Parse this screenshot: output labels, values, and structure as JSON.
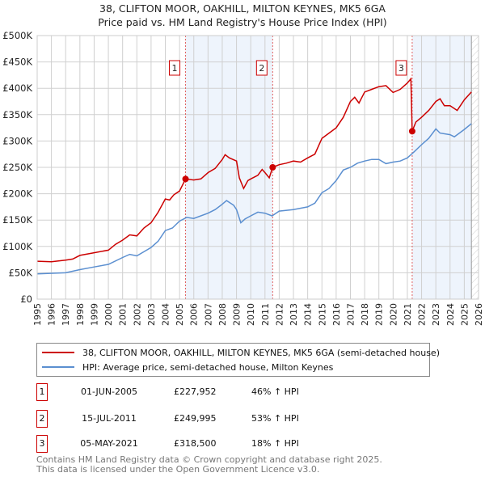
{
  "title_line1": "38, CLIFTON MOOR, OAKHILL, MILTON KEYNES, MK5 6GA",
  "title_line2": "Price paid vs. HM Land Registry's House Price Index (HPI)",
  "chart_data": {
    "type": "line",
    "title": "38, CLIFTON MOOR, OAKHILL, MILTON KEYNES, MK5 6GA — Price paid vs. HM Land Registry's House Price Index (HPI)",
    "xlim": [
      1995,
      2026
    ],
    "ylim": [
      0,
      500000
    ],
    "x_ticks": [
      "1995",
      "1996",
      "1997",
      "1998",
      "1999",
      "2000",
      "2001",
      "2002",
      "2003",
      "2004",
      "2005",
      "2006",
      "2007",
      "2008",
      "2009",
      "2010",
      "2011",
      "2012",
      "2013",
      "2014",
      "2015",
      "2016",
      "2017",
      "2018",
      "2019",
      "2020",
      "2021",
      "2022",
      "2023",
      "2024",
      "2025",
      "2026"
    ],
    "y_ticks": [
      {
        "v": 0,
        "label": "£0"
      },
      {
        "v": 50000,
        "label": "£50K"
      },
      {
        "v": 100000,
        "label": "£100K"
      },
      {
        "v": 150000,
        "label": "£150K"
      },
      {
        "v": 200000,
        "label": "£200K"
      },
      {
        "v": 250000,
        "label": "£250K"
      },
      {
        "v": 300000,
        "label": "£300K"
      },
      {
        "v": 350000,
        "label": "£350K"
      },
      {
        "v": 400000,
        "label": "£400K"
      },
      {
        "v": 450000,
        "label": "£450K"
      },
      {
        "v": 500000,
        "label": "£500K"
      }
    ],
    "grid": true,
    "legend_placement": "below",
    "series": [
      {
        "name": "38, CLIFTON MOOR, OAKHILL, MILTON KEYNES, MK5 6GA (semi-detached house)",
        "color": "#cc0000",
        "x": [
          1995,
          1996,
          1997,
          1997.5,
          1998,
          1999,
          2000,
          2000.5,
          2001,
          2001.5,
          2002,
          2002.5,
          2003,
          2003.5,
          2004,
          2004.3,
          2004.6,
          2005,
          2005.42,
          2006,
          2006.5,
          2007,
          2007.5,
          2008,
          2008.2,
          2008.5,
          2009,
          2009.2,
          2009.5,
          2009.8,
          2010,
          2010.5,
          2010.8,
          2011,
          2011.3,
          2011.54,
          2012,
          2012.5,
          2013,
          2013.5,
          2014,
          2014.5,
          2015,
          2015.5,
          2016,
          2016.5,
          2017,
          2017.3,
          2017.6,
          2018,
          2018.5,
          2019,
          2019.5,
          2020,
          2020.5,
          2021,
          2021.25,
          2021.34,
          2021.6,
          2022,
          2022.5,
          2023,
          2023.3,
          2023.6,
          2024,
          2024.5,
          2025,
          2025.5
        ],
        "y": [
          72000,
          71000,
          74000,
          76000,
          83000,
          88000,
          93000,
          104000,
          112000,
          122000,
          120000,
          135000,
          145000,
          165000,
          190000,
          188000,
          198000,
          205000,
          227952,
          226000,
          228000,
          240000,
          248000,
          265000,
          274000,
          268000,
          262000,
          230000,
          210000,
          225000,
          228000,
          235000,
          246000,
          240000,
          230000,
          249995,
          255000,
          258000,
          262000,
          260000,
          268000,
          275000,
          305000,
          315000,
          325000,
          345000,
          375000,
          383000,
          372000,
          393000,
          398000,
          403000,
          405000,
          392000,
          398000,
          410000,
          418000,
          318500,
          336000,
          345000,
          358000,
          375000,
          380000,
          367000,
          367000,
          358000,
          378000,
          393000
        ]
      },
      {
        "name": "HPI: Average price, semi-detached house, Milton Keynes",
        "color": "#5b8fd0",
        "x": [
          1995,
          1997,
          1998,
          1999,
          2000,
          2001,
          2001.5,
          2002,
          2003,
          2003.5,
          2004,
          2004.5,
          2005,
          2005.5,
          2006,
          2007,
          2007.5,
          2008,
          2008.3,
          2008.8,
          2009,
          2009.3,
          2009.6,
          2010,
          2010.5,
          2011,
          2011.5,
          2012,
          2013,
          2014,
          2014.5,
          2015,
          2015.5,
          2016,
          2016.5,
          2017,
          2017.5,
          2018,
          2018.5,
          2019,
          2019.5,
          2020,
          2020.5,
          2021,
          2021.5,
          2022,
          2022.5,
          2023,
          2023.3,
          2024,
          2024.3,
          2025,
          2025.5
        ],
        "y": [
          48000,
          50000,
          56000,
          61000,
          66000,
          79000,
          85000,
          82000,
          98000,
          110000,
          130000,
          135000,
          148000,
          155000,
          153000,
          163000,
          170000,
          180000,
          187000,
          178000,
          170000,
          145000,
          152000,
          158000,
          165000,
          163000,
          158000,
          167000,
          170000,
          175000,
          182000,
          202000,
          210000,
          225000,
          245000,
          250000,
          258000,
          262000,
          265000,
          265000,
          257000,
          260000,
          262000,
          268000,
          280000,
          293000,
          305000,
          323000,
          315000,
          312000,
          308000,
          322000,
          333000
        ]
      }
    ],
    "sales": [
      {
        "n": "1",
        "x": 2005.42,
        "date": "01-JUN-2005",
        "price": 227952,
        "price_label": "£227,952",
        "hpi": "46% ↑ HPI"
      },
      {
        "n": "2",
        "x": 2011.54,
        "date": "15-JUL-2011",
        "price": 249995,
        "price_label": "£249,995",
        "hpi": "53% ↑ HPI"
      },
      {
        "n": "3",
        "x": 2021.34,
        "date": "05-MAY-2021",
        "price": 318500,
        "price_label": "£318,500",
        "hpi": "18% ↑ HPI"
      }
    ],
    "shaded_ranges": [
      [
        2005.42,
        2011.54
      ],
      [
        2021.34,
        2025.5
      ]
    ],
    "forecast_from": 2025.5
  },
  "footer_line1": "Contains HM Land Registry data © Crown copyright and database right 2025.",
  "footer_line2": "This data is licensed under the Open Government Licence v3.0."
}
